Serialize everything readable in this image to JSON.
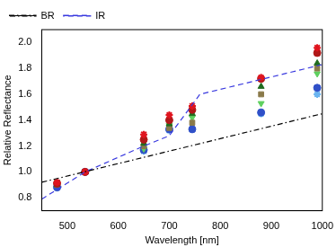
{
  "chart_data": {
    "type": "scatter",
    "x_label": "Wavelength [nm]",
    "y_label": "Relative Reflectance",
    "xlim": [
      450,
      1000
    ],
    "xticks": [
      500,
      600,
      700,
      800,
      900,
      1000
    ],
    "ylim": [
      0.7,
      2.1
    ],
    "yticks": [
      0.8,
      {
        "value": 1,
        "label": "1.0"
      },
      1.2,
      1.4,
      1.6,
      1.8,
      {
        "value": 2,
        "label": "2.0"
      }
    ],
    "grid": false,
    "legend": "upper left",
    "x": [
      480,
      535,
      650,
      700,
      745,
      880,
      990
    ],
    "series": [
      {
        "name": "BR",
        "type": "line",
        "color": "#000000",
        "line_style": "dashdot",
        "x": [
          450,
          1000
        ],
        "values": [
          0.92,
          1.45
        ]
      },
      {
        "name": "IR",
        "type": "line",
        "color": "#3a3adf",
        "line_style": "dashed",
        "x": [
          450,
          535,
          650,
          700,
          760,
          1000
        ],
        "values": [
          0.79,
          1.0,
          1.2,
          1.28,
          1.6,
          1.83
        ]
      },
      {
        "type": "scatter",
        "color": "#e0141e",
        "marker": "star",
        "values": [
          0.92,
          1.0,
          1.29,
          1.44,
          1.51,
          1.73,
          1.96
        ]
      },
      {
        "type": "scatter",
        "color": "#b01818",
        "marker": "circle",
        "values": [
          0.91,
          1.0,
          1.25,
          1.4,
          1.48,
          1.72,
          1.92
        ]
      },
      {
        "type": "scatter",
        "color": "#1f6b1f",
        "marker": "triangle",
        "values": [
          0.9,
          1.0,
          1.22,
          1.37,
          1.45,
          1.66,
          1.84
        ]
      },
      {
        "type": "scatter",
        "color": "#8a7a4a",
        "marker": "square",
        "values": [
          0.9,
          1.0,
          1.2,
          1.34,
          1.38,
          1.6,
          1.8
        ]
      },
      {
        "type": "scatter",
        "color": "#5fd05f",
        "marker": "triangle-down",
        "values": [
          0.92,
          1.0,
          1.18,
          1.36,
          1.42,
          1.53,
          1.76
        ]
      },
      {
        "type": "scatter",
        "color": "#3050c8",
        "marker": "circle",
        "values": [
          0.88,
          1.0,
          1.17,
          1.33,
          1.33,
          1.46,
          1.65
        ]
      },
      {
        "type": "scatter",
        "color": "#6ab4f0",
        "marker": "star",
        "values": [
          0.89,
          1.0,
          1.16,
          1.32,
          1.33,
          1.45,
          1.6
        ]
      }
    ]
  }
}
